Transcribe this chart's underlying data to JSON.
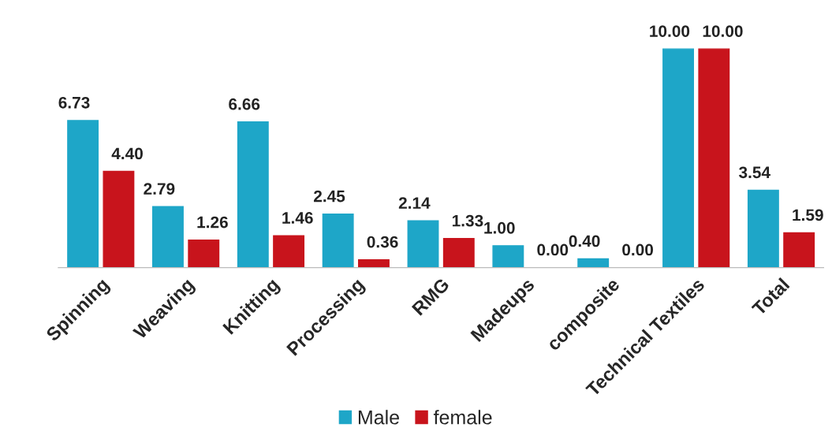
{
  "chart_data": {
    "type": "bar",
    "categories": [
      "Spinning",
      "Weaving",
      "Knitting",
      "Processing",
      "RMG",
      "Madeups",
      "composite",
      "Technical Textiles",
      "Total"
    ],
    "series": [
      {
        "name": "Male",
        "color": "#1ea6c8",
        "values": [
          6.73,
          2.79,
          6.66,
          2.45,
          2.14,
          1.0,
          0.4,
          10.0,
          3.54
        ],
        "value_labels": [
          "6.73",
          "2.79",
          "6.66",
          "2.45",
          "2.14",
          "1.00",
          "0.40",
          "10.00",
          "3.54"
        ]
      },
      {
        "name": "female",
        "color": "#c8141c",
        "values": [
          4.4,
          1.26,
          1.46,
          0.36,
          1.33,
          0.0,
          0.0,
          10.0,
          1.59
        ],
        "value_labels": [
          "4.40",
          "1.26",
          "1.46",
          "0.36",
          "1.33",
          "0.00",
          "0.00",
          "10.00",
          "1.59"
        ]
      }
    ],
    "legend": "bottom",
    "grid": false
  }
}
